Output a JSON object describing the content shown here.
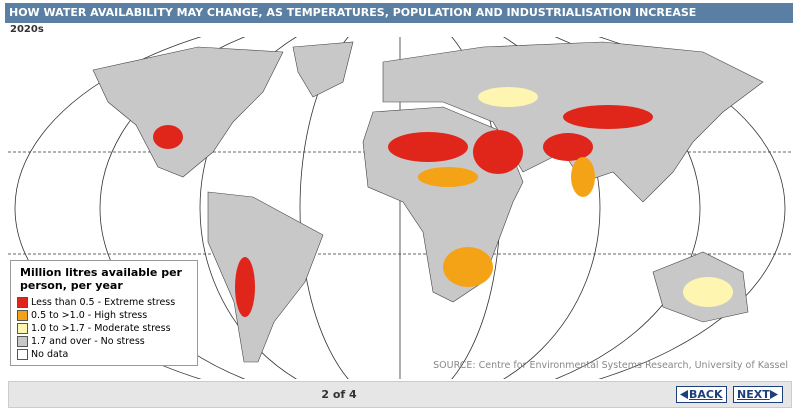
{
  "header": {
    "title": "HOW WATER AVAILABILITY MAY CHANGE, AS TEMPERATURES, POPULATION AND INDUSTRIALISATION INCREASE",
    "period": "2020s"
  },
  "legend": {
    "title": "Million litres available per person, per year",
    "items": [
      {
        "label": "Less than 0.5 - Extreme stress",
        "color": "#e0261b"
      },
      {
        "label": "0.5 to >1.0 - High stress",
        "color": "#f5a316"
      },
      {
        "label": "1.0 to >1.7 - Moderate stress",
        "color": "#fdf5b0"
      },
      {
        "label": "1.7 and over - No stress",
        "color": "#c8c8c8"
      },
      {
        "label": "No data",
        "color": "#ffffff"
      }
    ]
  },
  "source": "SOURCE: Centre for Environmental Systems Research, University of Kassel",
  "pager": {
    "position": "2 of 4",
    "back": "BACK",
    "next": "NEXT"
  }
}
